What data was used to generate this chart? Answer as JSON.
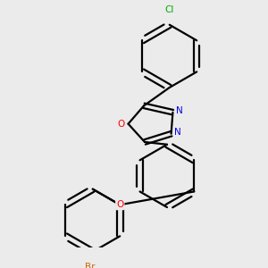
{
  "background_color": "#ebebeb",
  "bond_color": "#000000",
  "atom_colors": {
    "N": "#0000ee",
    "O_oxadiazole": "#ff0000",
    "O_ether": "#ff0000",
    "Cl": "#00aa00",
    "Br": "#cc6600"
  },
  "figsize": [
    3.0,
    3.0
  ],
  "dpi": 100,
  "r_ring": 0.09,
  "lw": 1.6
}
